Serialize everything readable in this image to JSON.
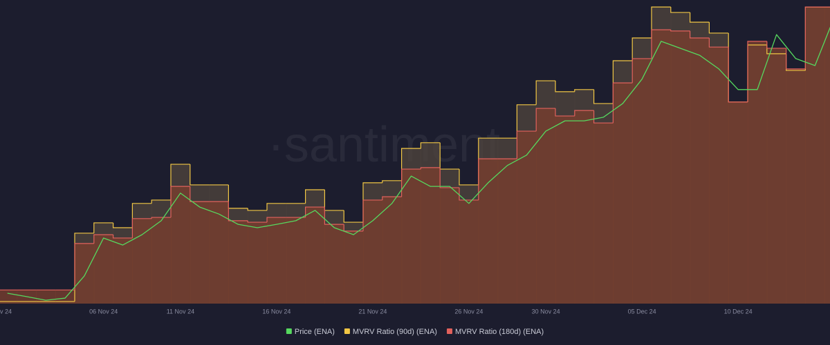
{
  "chart_data": {
    "type": "step-area-line",
    "watermark": "·santiment",
    "categories": [
      "v 24",
      null,
      null,
      null,
      null,
      "06 Nov 24",
      null,
      null,
      null,
      "11 Nov 24",
      null,
      null,
      null,
      null,
      "16 Nov 24",
      null,
      null,
      null,
      null,
      "21 Nov 24",
      null,
      null,
      null,
      null,
      "26 Nov 24",
      null,
      null,
      null,
      "30 Nov 24",
      null,
      null,
      null,
      null,
      "05 Dec 24",
      null,
      null,
      null,
      null,
      "10 Dec 24",
      null,
      null,
      null,
      null,
      null
    ],
    "ylim": [
      0,
      100
    ],
    "legend": "bottom",
    "series": [
      {
        "name": "Price (ENA)",
        "color": "#56d95f",
        "style": "line",
        "values": [
          3.4,
          2.3,
          1.1,
          1.8,
          9.1,
          21.6,
          19.3,
          22.7,
          27.3,
          36.4,
          31.8,
          29.5,
          26.1,
          25.0,
          26.1,
          27.3,
          30.7,
          25.0,
          22.7,
          27.3,
          33.0,
          42.0,
          38.6,
          38.6,
          33.0,
          39.8,
          45.5,
          48.9,
          56.8,
          60.2,
          60.2,
          61.4,
          65.9,
          73.9,
          86.4,
          84.1,
          81.8,
          77.3,
          70.5,
          70.5,
          88.6,
          80.7,
          78.4,
          94.3
        ]
      },
      {
        "name": "MVRV Ratio (90d) (ENA)",
        "color": "#f2c744",
        "style": "step-area",
        "values": [
          0.7,
          0.7,
          0.7,
          0.7,
          23.2,
          26.6,
          25.0,
          33.0,
          34.1,
          45.9,
          39.1,
          39.1,
          31.4,
          30.7,
          33.0,
          33.0,
          37.5,
          30.7,
          26.8,
          39.8,
          40.5,
          51.1,
          53.0,
          44.3,
          39.1,
          54.5,
          54.5,
          65.5,
          73.4,
          69.8,
          70.5,
          65.9,
          80.0,
          87.5,
          97.7,
          95.9,
          92.7,
          89.1,
          66.4,
          85.2,
          82.3,
          76.8,
          97.7,
          97.7
        ]
      },
      {
        "name": "MVRV Ratio (180d) (ENA)",
        "color": "#e2615c",
        "style": "step-area",
        "values": [
          4.5,
          4.5,
          4.5,
          4.5,
          19.8,
          22.7,
          21.6,
          28.0,
          28.4,
          38.6,
          33.6,
          33.6,
          27.3,
          26.8,
          28.4,
          28.4,
          31.8,
          26.1,
          23.9,
          34.1,
          35.2,
          44.3,
          44.8,
          38.2,
          34.1,
          47.7,
          47.7,
          56.8,
          64.3,
          61.8,
          63.6,
          59.5,
          72.7,
          80.7,
          90.2,
          89.8,
          87.5,
          84.5,
          66.4,
          86.4,
          84.1,
          77.3,
          97.7,
          97.7
        ]
      }
    ]
  }
}
